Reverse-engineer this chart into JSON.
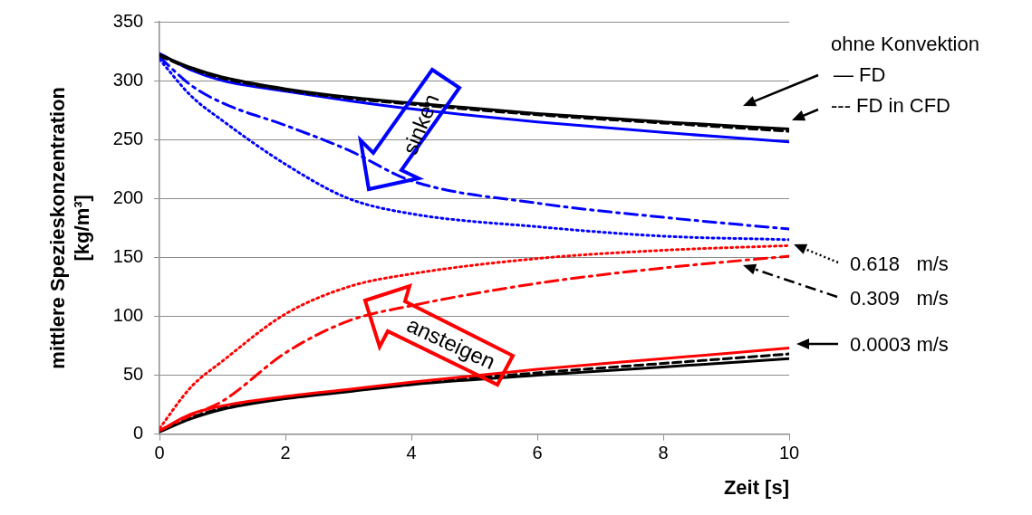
{
  "chart_data": {
    "type": "line",
    "xlabel": "Zeit [s]",
    "ylabel": "mittlere Spezieskonzentration\n[kg/m³]",
    "x": [
      0,
      0.5,
      1,
      2,
      3,
      4,
      6,
      8,
      10
    ],
    "xlim": [
      0,
      10
    ],
    "xticks": [
      0,
      2,
      4,
      6,
      8,
      10
    ],
    "ylim": [
      0,
      350
    ],
    "yticks": [
      0,
      50,
      100,
      150,
      200,
      250,
      300,
      350
    ],
    "grid": "y",
    "legend": false,
    "marker": "none",
    "series": [
      {
        "color": "#000000",
        "line_style": "solid",
        "values": [
          322,
          311,
          303,
          293,
          286,
          281,
          272,
          265,
          259
        ]
      },
      {
        "color": "#000000",
        "line_style": "dashed",
        "values": [
          321,
          310,
          302,
          292,
          285,
          280,
          271,
          264,
          257
        ]
      },
      {
        "color": "#0000ff",
        "line_style": "solid",
        "values": [
          323,
          309,
          300,
          291,
          283,
          276,
          265,
          256,
          248
        ]
      },
      {
        "color": "#0000ff",
        "line_style": "dashdot",
        "values": [
          320,
          296,
          281,
          262,
          241,
          215,
          196,
          184,
          174
        ]
      },
      {
        "color": "#0000ff",
        "line_style": "dotted",
        "values": [
          318,
          287,
          266,
          229,
          200,
          187,
          176,
          168,
          165
        ]
      },
      {
        "color": "#ff0000",
        "line_style": "dotted",
        "values": [
          5,
          40,
          62,
          102,
          125,
          136,
          149,
          156,
          160
        ]
      },
      {
        "color": "#ff0000",
        "line_style": "dashdot",
        "values": [
          3,
          16,
          28,
          69,
          96,
          109,
          128,
          141,
          151
        ]
      },
      {
        "color": "#ff0000",
        "line_style": "solid",
        "values": [
          3,
          17,
          24,
          32,
          38,
          44,
          55,
          64,
          73
        ]
      },
      {
        "color": "#000000",
        "line_style": "solid",
        "values": [
          2,
          13,
          21,
          30,
          36,
          42,
          50,
          57,
          64
        ]
      },
      {
        "color": "#000000",
        "line_style": "dashed",
        "values": [
          2,
          14,
          22,
          31,
          37,
          43,
          52,
          60,
          68
        ]
      }
    ],
    "annotations": [
      "ohne Konvektion",
      "— FD",
      "--- FD in CFD",
      "0.618   m/s",
      "0.309   m/s",
      "0.0003 m/s",
      "sinken",
      "ansteigen"
    ]
  }
}
